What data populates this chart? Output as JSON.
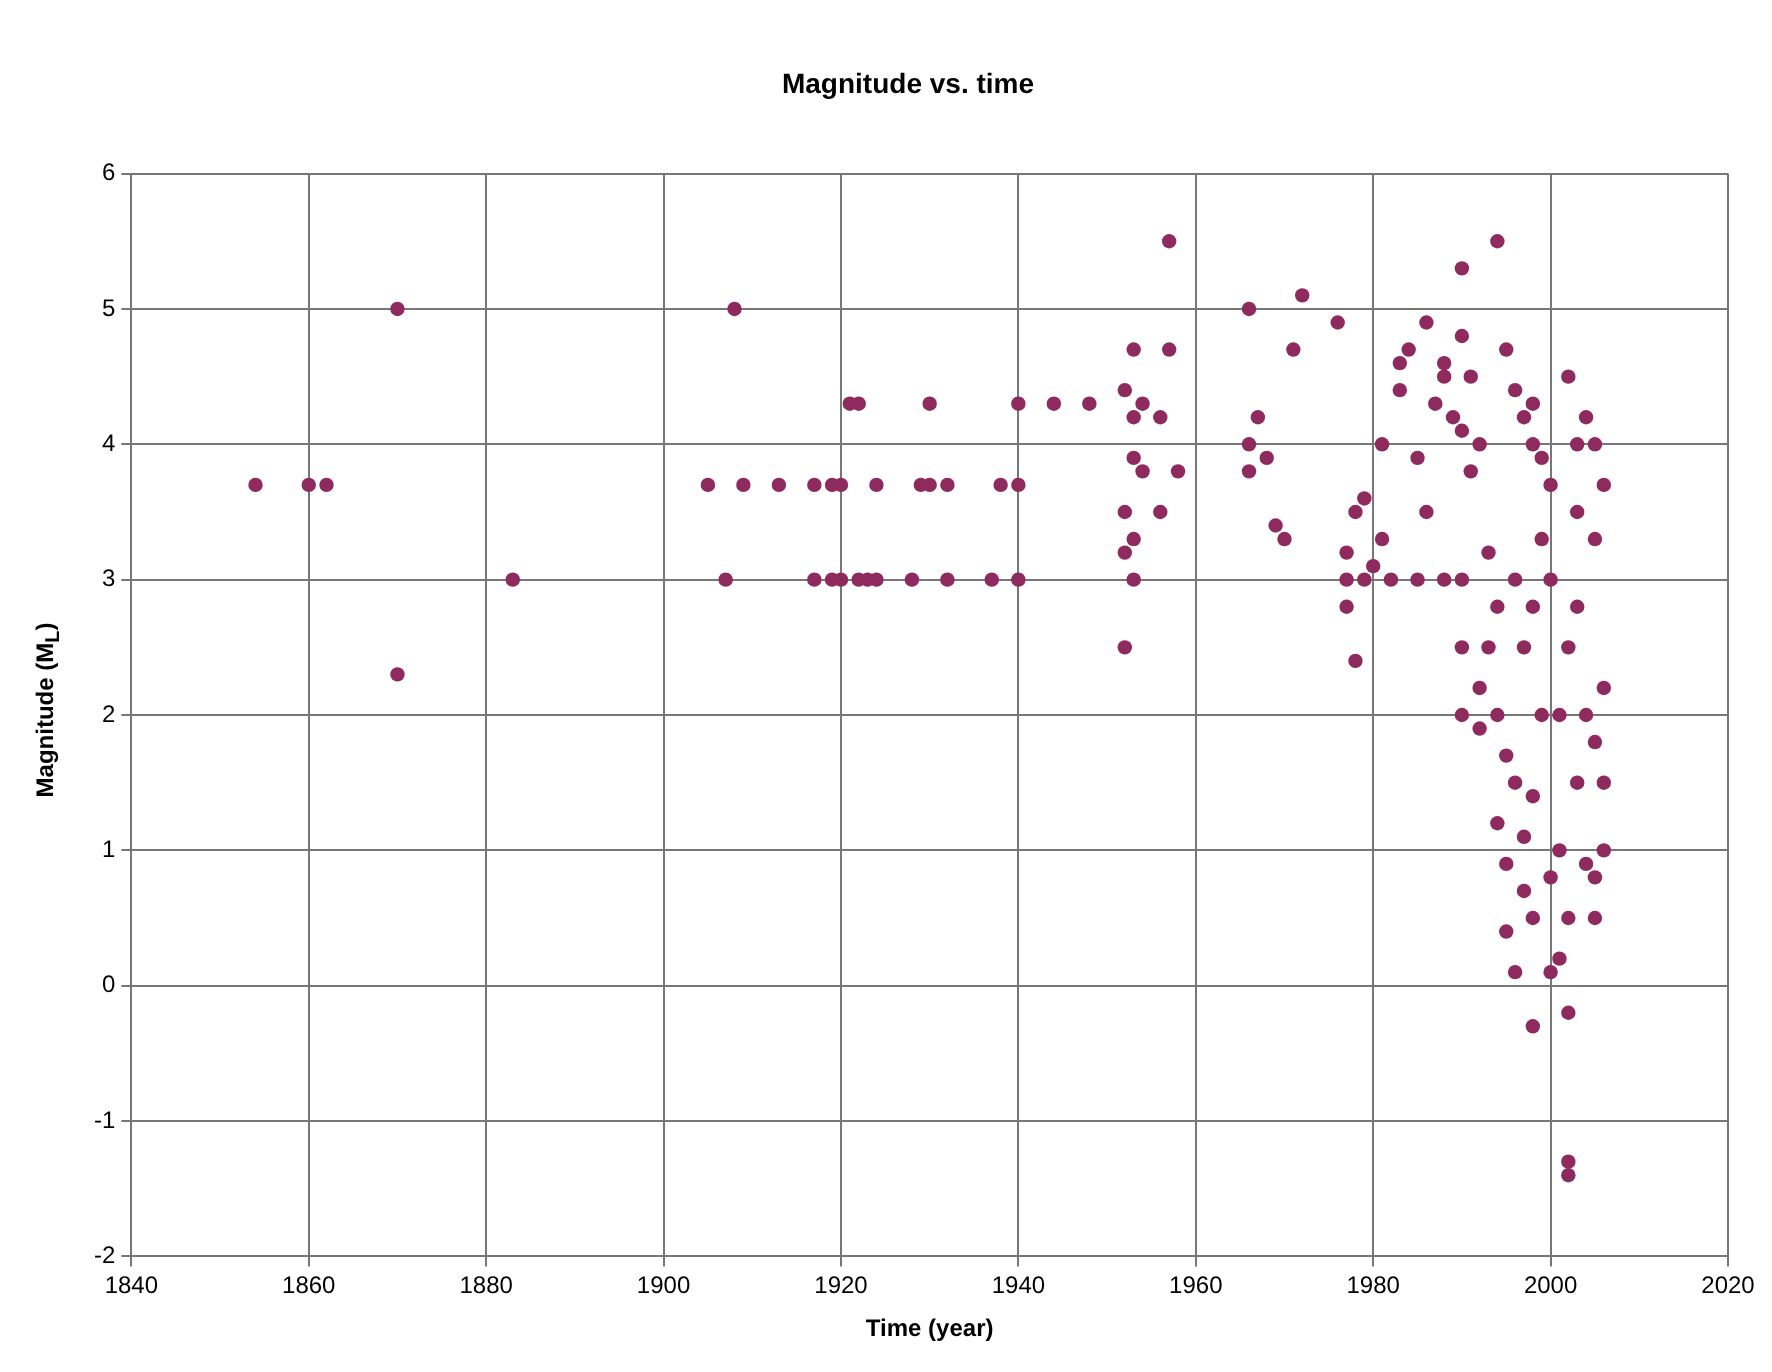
{
  "chart_data": {
    "type": "scatter",
    "title": "Magnitude vs. time",
    "xlabel": "Time (year)",
    "ylabel": "Magnitude (M$_{L}$)",
    "xlim": [
      1840,
      2020
    ],
    "xticks": [
      1840,
      1860,
      1880,
      1900,
      1920,
      1940,
      1960,
      1980,
      2000,
      2020
    ],
    "ylim": [
      -2,
      6
    ],
    "yticks": [
      -2,
      -1,
      0,
      1,
      2,
      3,
      4,
      5,
      6
    ],
    "grid": true,
    "legend": false,
    "marker": "circle",
    "series": [
      {
        "color": "#8e2a5e",
        "x": [
          1854,
          1860,
          1862,
          1870,
          1870,
          1883,
          1905,
          1907,
          1908,
          1909,
          1913,
          1917,
          1917,
          1919,
          1919,
          1920,
          1920,
          1921,
          1922,
          1922,
          1923,
          1924,
          1924,
          1928,
          1929,
          1930,
          1930,
          1932,
          1932,
          1937,
          1938,
          1940,
          1940,
          1940,
          1944,
          1948,
          1952,
          1952,
          1952,
          1952,
          1953,
          1953,
          1953,
          1953,
          1953,
          1954,
          1954,
          1956,
          1956,
          1957,
          1957,
          1958,
          1966,
          1966,
          1966,
          1967,
          1968,
          1969,
          1970,
          1971,
          1972,
          1976,
          1977,
          1977,
          1977,
          1978,
          1978,
          1979,
          1980,
          1981,
          1981,
          1983,
          1983,
          1984,
          1985,
          1986,
          1986,
          1987,
          1988,
          1988,
          1989,
          1990,
          1990,
          1990,
          1991,
          1991,
          1992,
          1994,
          1995,
          1996,
          1997,
          1998,
          1998,
          1999,
          2000,
          1979,
          1982,
          1985,
          1988,
          1990,
          1990,
          1990,
          1992,
          1992,
          1993,
          1994,
          1994,
          1995,
          1995,
          1995,
          1996,
          1996,
          1997,
          1997,
          1998,
          1998,
          1998,
          1998,
          1999,
          2000,
          2000,
          2001,
          2001,
          2002,
          2002,
          2002,
          2002,
          2002,
          2003,
          2004,
          2005,
          2005,
          2005,
          2006,
          2006,
          2004,
          2003,
          2002,
          2006,
          2005,
          2003,
          1996,
          1997,
          1993,
          1999,
          1994,
          2001,
          2000,
          2004,
          2006,
          2003,
          2005
        ],
        "values": [
          3.7,
          3.7,
          3.7,
          5.0,
          2.3,
          3.0,
          3.7,
          3.0,
          5.0,
          3.7,
          3.7,
          3.7,
          3.0,
          3.7,
          3.0,
          3.7,
          3.0,
          4.3,
          4.3,
          3.0,
          3.0,
          3.7,
          3.0,
          3.0,
          3.7,
          4.3,
          3.7,
          3.7,
          3.0,
          3.0,
          3.7,
          4.3,
          3.7,
          3.0,
          4.3,
          4.3,
          2.5,
          4.4,
          3.5,
          3.2,
          4.7,
          4.2,
          3.9,
          3.0,
          3.3,
          4.3,
          3.8,
          3.5,
          4.2,
          5.5,
          4.7,
          3.8,
          5.0,
          4.0,
          3.8,
          4.2,
          3.9,
          3.4,
          3.3,
          4.7,
          5.1,
          4.9,
          3.0,
          3.2,
          2.8,
          2.4,
          3.5,
          3.6,
          3.1,
          4.0,
          3.3,
          4.4,
          4.6,
          4.7,
          3.9,
          4.9,
          3.5,
          4.3,
          4.6,
          4.5,
          4.2,
          5.3,
          4.8,
          4.1,
          4.5,
          3.8,
          4.0,
          5.5,
          4.7,
          4.4,
          4.2,
          4.3,
          4.0,
          3.9,
          3.7,
          3.0,
          3.0,
          3.0,
          3.0,
          3.0,
          2.0,
          2.5,
          1.9,
          2.2,
          2.5,
          1.2,
          2.0,
          1.7,
          0.9,
          0.4,
          0.1,
          1.5,
          0.7,
          1.1,
          0.5,
          -0.3,
          1.4,
          2.8,
          2.0,
          0.8,
          0.1,
          0.2,
          1.0,
          -0.2,
          -1.3,
          -1.4,
          4.5,
          0.5,
          4.0,
          4.2,
          4.0,
          0.5,
          0.8,
          1.0,
          3.7,
          2.0,
          1.5,
          2.5,
          2.2,
          3.3,
          3.5,
          3.0,
          2.5,
          3.2,
          3.3,
          2.8,
          2.0,
          3.0,
          0.9,
          1.5,
          2.8,
          1.8
        ]
      }
    ]
  }
}
